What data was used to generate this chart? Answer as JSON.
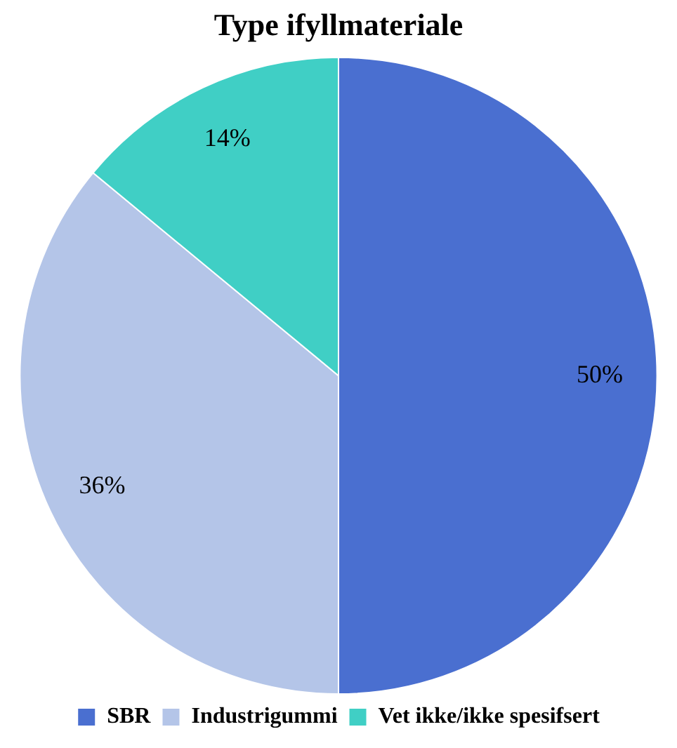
{
  "chart_data": {
    "type": "pie",
    "title": "Type ifyllmateriale",
    "categories": [
      "SBR",
      "Industrigummi",
      "Vet ikke/ikke spesifsert"
    ],
    "values": [
      50,
      36,
      14
    ],
    "colors": [
      "#4a6fd0",
      "#b4c5e8",
      "#40cfc5"
    ],
    "value_labels": [
      "50%",
      "36%",
      "14%"
    ],
    "legend": "bottom"
  }
}
